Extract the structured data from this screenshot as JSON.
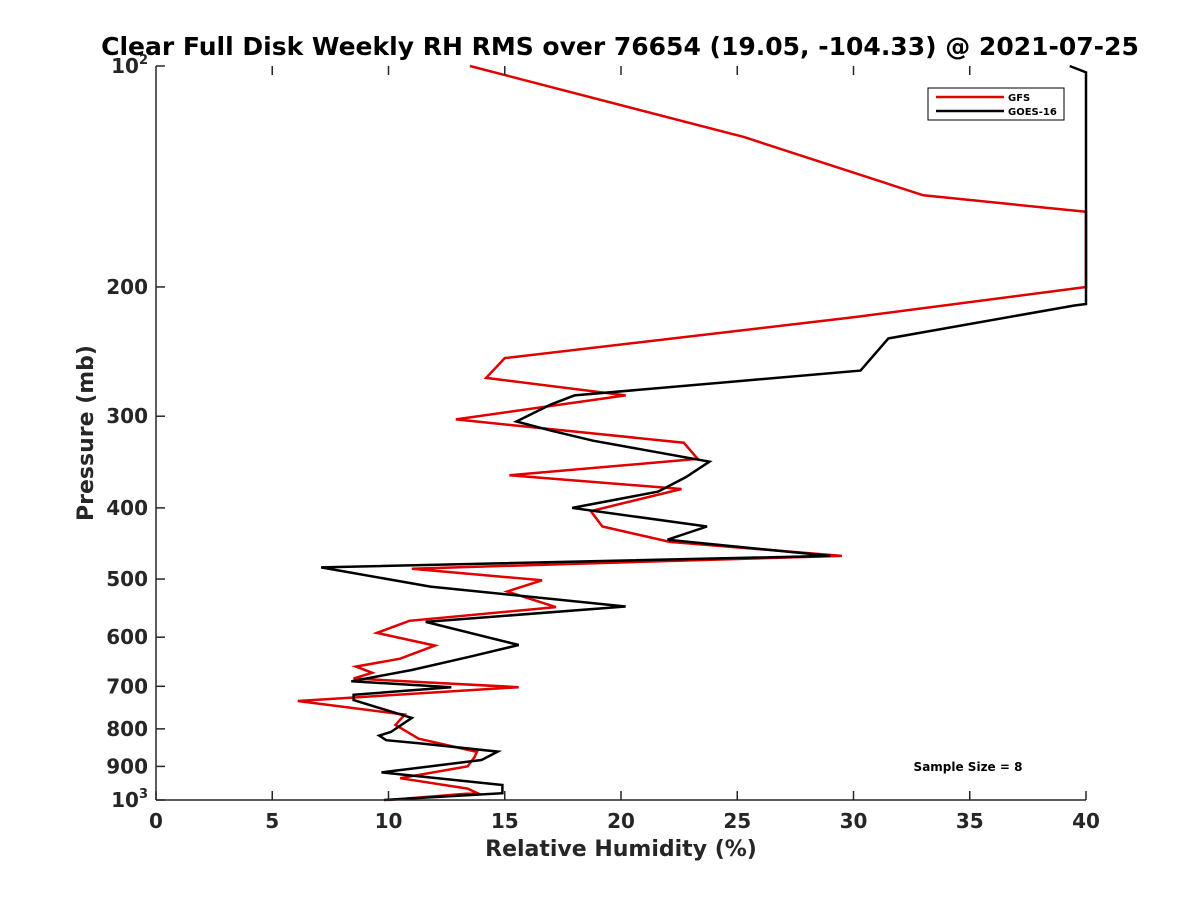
{
  "chart_data": {
    "type": "line",
    "title": "Clear Full Disk Weekly RH RMS over 76654 (19.05, -104.33) @ 2021-07-25",
    "xlabel": "Relative Humidity (%)",
    "ylabel": "Pressure (mb)",
    "xlim": [
      0,
      40
    ],
    "ylim": [
      100,
      1000
    ],
    "yscale": "log",
    "y_reversed": true,
    "grid": false,
    "x_ticks": [
      0,
      5,
      10,
      15,
      20,
      25,
      30,
      35,
      40
    ],
    "x_tick_labels": [
      "0",
      "5",
      "10",
      "15",
      "20",
      "25",
      "30",
      "35",
      "40"
    ],
    "y_ticks": [
      {
        "value": 100,
        "label": "10",
        "exp": "2"
      },
      {
        "value": 200,
        "label": "200"
      },
      {
        "value": 300,
        "label": "300"
      },
      {
        "value": 400,
        "label": "400"
      },
      {
        "value": 500,
        "label": "500"
      },
      {
        "value": 600,
        "label": "600"
      },
      {
        "value": 700,
        "label": "700"
      },
      {
        "value": 800,
        "label": "800"
      },
      {
        "value": 900,
        "label": "900"
      },
      {
        "value": 1000,
        "label": "10",
        "exp": "3"
      }
    ],
    "legend_position": "top-right",
    "annotation": "Sample Size = 8",
    "series": [
      {
        "name": "GFS",
        "color": "#e00000",
        "points": [
          [
            13.5,
            100
          ],
          [
            25.3,
            125
          ],
          [
            33.0,
            150
          ],
          [
            40.0,
            158
          ],
          [
            40.0,
            200
          ],
          [
            30.0,
            220
          ],
          [
            15.0,
            250
          ],
          [
            14.2,
            266
          ],
          [
            20.2,
            281
          ],
          [
            12.9,
            303
          ],
          [
            22.7,
            326
          ],
          [
            23.3,
            343
          ],
          [
            15.2,
            361
          ],
          [
            22.6,
            377
          ],
          [
            18.7,
            404
          ],
          [
            19.2,
            424
          ],
          [
            22.1,
            445
          ],
          [
            29.5,
            465
          ],
          [
            11.0,
            484
          ],
          [
            16.6,
            502
          ],
          [
            15.1,
            520
          ],
          [
            17.2,
            546
          ],
          [
            10.9,
            570
          ],
          [
            9.5,
            592
          ],
          [
            12.0,
            616
          ],
          [
            10.5,
            642
          ],
          [
            8.6,
            658
          ],
          [
            9.3,
            671
          ],
          [
            8.5,
            683
          ],
          [
            15.6,
            702
          ],
          [
            6.1,
            733
          ],
          [
            10.7,
            765
          ],
          [
            10.3,
            790
          ],
          [
            11.3,
            825
          ],
          [
            13.8,
            860
          ],
          [
            13.7,
            874
          ],
          [
            13.4,
            900
          ],
          [
            10.5,
            934
          ],
          [
            13.4,
            965
          ],
          [
            13.8,
            978
          ],
          [
            10.0,
            1000
          ]
        ]
      },
      {
        "name": "GOES-16",
        "color": "#000000",
        "points": [
          [
            39.3,
            100
          ],
          [
            40.0,
            102
          ],
          [
            40.0,
            211
          ],
          [
            39.5,
            212
          ],
          [
            31.5,
            235
          ],
          [
            30.3,
            260
          ],
          [
            18.0,
            281
          ],
          [
            17.0,
            289
          ],
          [
            15.5,
            305
          ],
          [
            17.0,
            314
          ],
          [
            18.8,
            324
          ],
          [
            23.8,
            346
          ],
          [
            22.8,
            363
          ],
          [
            21.6,
            380
          ],
          [
            17.9,
            400
          ],
          [
            23.7,
            424
          ],
          [
            22.0,
            442
          ],
          [
            29.0,
            465
          ],
          [
            7.1,
            482
          ],
          [
            11.8,
            512
          ],
          [
            20.2,
            545
          ],
          [
            11.6,
            572
          ],
          [
            15.6,
            615
          ],
          [
            13.5,
            638
          ],
          [
            11.0,
            665
          ],
          [
            8.4,
            689
          ],
          [
            12.7,
            702
          ],
          [
            8.5,
            719
          ],
          [
            8.5,
            731
          ],
          [
            11.0,
            773
          ],
          [
            10.1,
            808
          ],
          [
            9.6,
            817
          ],
          [
            9.9,
            829
          ],
          [
            11.3,
            837
          ],
          [
            14.7,
            859
          ],
          [
            14.0,
            882
          ],
          [
            9.7,
            917
          ],
          [
            14.9,
            954
          ],
          [
            14.9,
            979
          ],
          [
            9.8,
            1000
          ]
        ]
      }
    ]
  }
}
